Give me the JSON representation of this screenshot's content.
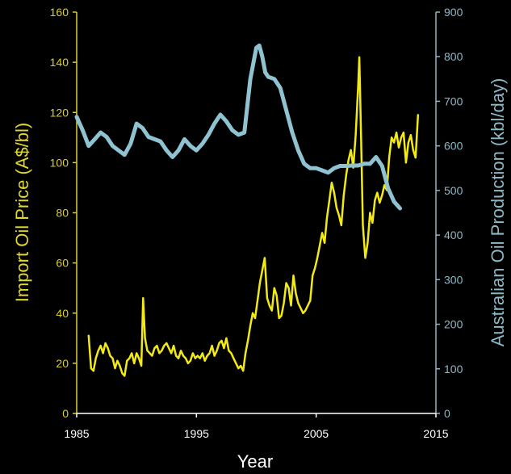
{
  "chart_data": {
    "type": "line",
    "title": "",
    "xlabel": "Year",
    "ylabel_left": "Import Oil Price (A$/bl)",
    "ylabel_right": "Australian Oil Production (kbl/day)",
    "xlim": [
      1985,
      2015
    ],
    "ylim_left": [
      0,
      160
    ],
    "ylim_right": [
      0,
      900
    ],
    "x_ticks": [
      "1985",
      "1995",
      "2005",
      "2015"
    ],
    "y_left_ticks": [
      "0",
      "20",
      "40",
      "60",
      "80",
      "100",
      "120",
      "140",
      "160"
    ],
    "y_right_ticks": [
      "0",
      "100",
      "200",
      "300",
      "400",
      "500",
      "600",
      "700",
      "800",
      "900"
    ],
    "grid": false,
    "legend": "none",
    "colors": {
      "price": "#f2ea12",
      "production": "#8fc3d2",
      "left_axis": "#d9cf2a",
      "right_axis": "#8fb8c6",
      "x_axis": "#ffffff"
    },
    "series": [
      {
        "axis": "left",
        "x": [
          1986.0,
          1986.2,
          1986.4,
          1986.6,
          1986.8,
          1987.0,
          1987.2,
          1987.4,
          1987.6,
          1987.8,
          1988.0,
          1988.2,
          1988.4,
          1988.6,
          1988.8,
          1989.0,
          1989.2,
          1989.4,
          1989.6,
          1989.8,
          1990.0,
          1990.2,
          1990.4,
          1990.55,
          1990.7,
          1990.9,
          1991.1,
          1991.3,
          1991.5,
          1991.7,
          1991.9,
          1992.1,
          1992.3,
          1992.5,
          1992.7,
          1992.9,
          1993.1,
          1993.3,
          1993.5,
          1993.7,
          1993.9,
          1994.1,
          1994.3,
          1994.5,
          1994.7,
          1994.9,
          1995.1,
          1995.3,
          1995.5,
          1995.7,
          1995.9,
          1996.1,
          1996.3,
          1996.5,
          1996.7,
          1996.9,
          1997.1,
          1997.3,
          1997.5,
          1997.7,
          1997.9,
          1998.1,
          1998.3,
          1998.5,
          1998.7,
          1998.9,
          1999.1,
          1999.3,
          1999.5,
          1999.7,
          1999.9,
          2000.1,
          2000.3,
          2000.5,
          2000.7,
          2000.9,
          2001.1,
          2001.3,
          2001.5,
          2001.7,
          2001.9,
          2002.1,
          2002.3,
          2002.5,
          2002.7,
          2002.9,
          2003.1,
          2003.3,
          2003.5,
          2003.7,
          2003.9,
          2004.1,
          2004.3,
          2004.5,
          2004.7,
          2004.9,
          2005.1,
          2005.3,
          2005.5,
          2005.7,
          2005.9,
          2006.1,
          2006.3,
          2006.5,
          2006.7,
          2006.9,
          2007.1,
          2007.3,
          2007.5,
          2007.7,
          2007.9,
          2008.1,
          2008.3,
          2008.5,
          2008.6,
          2008.75,
          2008.9,
          2009.1,
          2009.3,
          2009.5,
          2009.7,
          2009.9,
          2010.1,
          2010.3,
          2010.5,
          2010.7,
          2010.9,
          2011.1,
          2011.3,
          2011.5,
          2011.7,
          2011.9,
          2012.1,
          2012.3,
          2012.5,
          2012.7,
          2012.9,
          2013.1,
          2013.3,
          2013.5
        ],
        "values": [
          31,
          18,
          17,
          22,
          25,
          27,
          24,
          28,
          26,
          23,
          22,
          18,
          21,
          19,
          16,
          15,
          21,
          22,
          24,
          20,
          24,
          22,
          19,
          46,
          30,
          25,
          24,
          23,
          26,
          27,
          24,
          25,
          27,
          28,
          26,
          24,
          27,
          23,
          22,
          25,
          23,
          22,
          20,
          21,
          24,
          22,
          23,
          22,
          24,
          21,
          23,
          24,
          27,
          23,
          25,
          28,
          29,
          26,
          30,
          25,
          24,
          22,
          20,
          18,
          19,
          17,
          24,
          29,
          35,
          40,
          38,
          45,
          52,
          57,
          62,
          46,
          43,
          41,
          50,
          47,
          38,
          39,
          44,
          52,
          50,
          43,
          55,
          48,
          44,
          42,
          40,
          41,
          43,
          45,
          55,
          58,
          62,
          67,
          72,
          68,
          78,
          85,
          92,
          88,
          82,
          79,
          75,
          87,
          95,
          101,
          105,
          98,
          111,
          130,
          142,
          110,
          75,
          62,
          68,
          80,
          76,
          85,
          88,
          84,
          87,
          91,
          89,
          102,
          110,
          108,
          112,
          106,
          110,
          112,
          100,
          108,
          111,
          105,
          102,
          119
        ],
        "stroke_width": 2.5
      },
      {
        "axis": "right",
        "x": [
          1985,
          1985.5,
          1986,
          1986.5,
          1987,
          1987.5,
          1988,
          1988.5,
          1989,
          1989.5,
          1990,
          1990.5,
          1991,
          1991.5,
          1992,
          1992.5,
          1993,
          1993.5,
          1994,
          1994.5,
          1995,
          1995.5,
          1996,
          1996.5,
          1997,
          1997.5,
          1998,
          1998.5,
          1999,
          1999.5,
          2000,
          2000.25,
          2000.5,
          2000.75,
          2001,
          2001.5,
          2002,
          2002.5,
          2003,
          2003.5,
          2004,
          2004.5,
          2005,
          2005.5,
          2006,
          2006.5,
          2007,
          2007.5,
          2008,
          2008.5,
          2009,
          2009.5,
          2010,
          2010.5,
          2011,
          2011.5,
          2012
        ],
        "values": [
          665,
          635,
          600,
          615,
          630,
          620,
          600,
          590,
          580,
          605,
          650,
          640,
          620,
          615,
          610,
          590,
          575,
          590,
          615,
          600,
          590,
          605,
          625,
          650,
          670,
          655,
          635,
          625,
          630,
          750,
          820,
          825,
          800,
          765,
          755,
          750,
          730,
          680,
          630,
          590,
          560,
          550,
          550,
          545,
          540,
          550,
          555,
          555,
          556,
          556,
          560,
          560,
          575,
          555,
          505,
          475,
          460
        ],
        "stroke_width": 5
      }
    ]
  }
}
